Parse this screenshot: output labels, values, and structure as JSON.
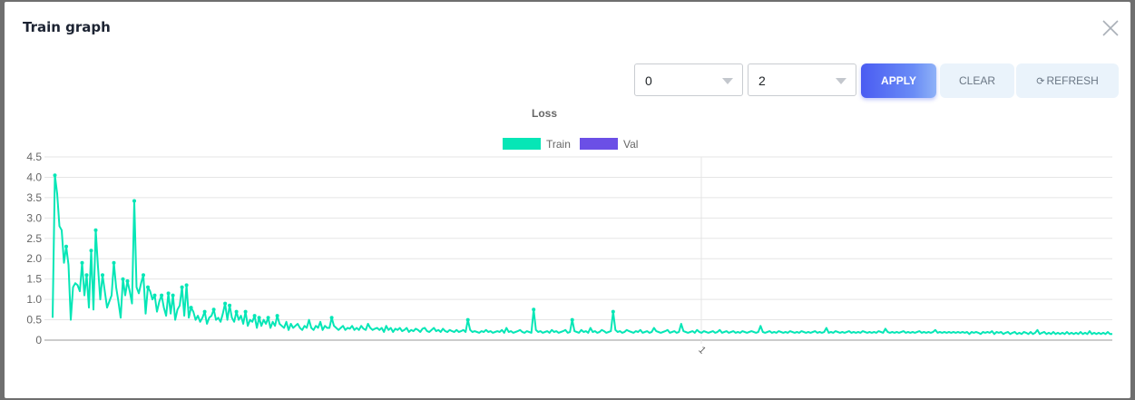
{
  "modal": {
    "title": "Train graph"
  },
  "filters": {
    "from_value": "0",
    "to_value": "2"
  },
  "buttons": {
    "apply": "APPLY",
    "clear": "CLEAR",
    "refresh": "REFRESH"
  },
  "colors": {
    "train": "#06e6b6",
    "val": "#6b4fe6",
    "grid": "#e5e5e5",
    "apply_gradient_start": "#4a5cf2"
  },
  "icons": {
    "close": "close-icon",
    "caret": "chevron-down-icon",
    "refresh": "refresh-icon"
  },
  "chart_data": {
    "type": "line",
    "title": "Loss",
    "xlabel": "",
    "ylabel": "",
    "ylim": [
      0,
      4.5
    ],
    "yticks": [
      "0",
      "0.5",
      "1.0",
      "1.5",
      "2.0",
      "2.5",
      "3.0",
      "3.5",
      "4.0",
      "4.5"
    ],
    "xticks": [
      "1"
    ],
    "grid": true,
    "legend": "top-center",
    "series": [
      {
        "name": "Train",
        "color": "#06e6b6",
        "values": [
          0.55,
          4.05,
          3.6,
          2.8,
          2.7,
          1.9,
          2.3,
          1.85,
          0.5,
          1.3,
          1.4,
          1.35,
          1.2,
          1.9,
          1.1,
          1.6,
          0.8,
          2.2,
          0.75,
          2.7,
          1.8,
          1.0,
          1.6,
          1.2,
          0.8,
          0.95,
          1.1,
          1.9,
          1.3,
          0.95,
          0.55,
          1.5,
          1.1,
          1.45,
          1.2,
          0.9,
          3.42,
          1.3,
          1.15,
          1.4,
          1.6,
          0.65,
          1.3,
          1.2,
          1.0,
          1.1,
          0.7,
          0.95,
          1.1,
          0.8,
          0.6,
          1.15,
          0.65,
          1.1,
          0.5,
          0.75,
          0.85,
          1.3,
          0.6,
          1.35,
          0.55,
          0.8,
          0.7,
          0.5,
          0.6,
          0.45,
          0.55,
          0.7,
          0.4,
          0.55,
          0.6,
          0.75,
          0.5,
          0.55,
          0.45,
          0.65,
          0.9,
          0.5,
          0.85,
          0.55,
          0.45,
          0.7,
          0.5,
          0.6,
          0.4,
          0.7,
          0.35,
          0.5,
          0.45,
          0.6,
          0.3,
          0.55,
          0.35,
          0.5,
          0.4,
          0.55,
          0.3,
          0.45,
          0.35,
          0.6,
          0.4,
          0.35,
          0.3,
          0.45,
          0.25,
          0.4,
          0.3,
          0.35,
          0.4,
          0.3,
          0.25,
          0.35,
          0.3,
          0.5,
          0.3,
          0.25,
          0.35,
          0.3,
          0.45,
          0.25,
          0.35,
          0.3,
          0.3,
          0.55,
          0.35,
          0.3,
          0.25,
          0.3,
          0.35,
          0.25,
          0.3,
          0.28,
          0.35,
          0.25,
          0.3,
          0.25,
          0.35,
          0.28,
          0.25,
          0.4,
          0.3,
          0.25,
          0.28,
          0.3,
          0.25,
          0.3,
          0.2,
          0.35,
          0.25,
          0.3,
          0.2,
          0.28,
          0.25,
          0.3,
          0.22,
          0.25,
          0.3,
          0.2,
          0.25,
          0.22,
          0.28,
          0.25,
          0.2,
          0.28,
          0.3,
          0.22,
          0.2,
          0.25,
          0.3,
          0.22,
          0.25,
          0.2,
          0.28,
          0.22,
          0.2,
          0.25,
          0.22,
          0.2,
          0.25,
          0.2,
          0.22,
          0.25,
          0.2,
          0.5,
          0.25,
          0.2,
          0.22,
          0.2,
          0.18,
          0.22,
          0.2,
          0.25,
          0.2,
          0.22,
          0.18,
          0.2,
          0.22,
          0.2,
          0.25,
          0.18,
          0.3,
          0.2,
          0.22,
          0.18,
          0.2,
          0.22,
          0.25,
          0.2,
          0.18,
          0.22,
          0.2,
          0.18,
          0.75,
          0.25,
          0.2,
          0.22,
          0.18,
          0.2,
          0.22,
          0.18,
          0.25,
          0.2,
          0.22,
          0.18,
          0.2,
          0.22,
          0.25,
          0.18,
          0.2,
          0.5,
          0.22,
          0.2,
          0.18,
          0.25,
          0.2,
          0.22,
          0.18,
          0.3,
          0.2,
          0.22,
          0.18,
          0.2,
          0.25,
          0.22,
          0.18,
          0.2,
          0.22,
          0.7,
          0.25,
          0.2,
          0.22,
          0.18,
          0.2,
          0.25,
          0.22,
          0.2,
          0.18,
          0.22,
          0.2,
          0.25,
          0.18,
          0.2,
          0.22,
          0.18,
          0.2,
          0.3,
          0.22,
          0.2,
          0.18,
          0.2,
          0.22,
          0.25,
          0.18,
          0.2,
          0.22,
          0.18,
          0.2,
          0.4,
          0.22,
          0.2,
          0.18,
          0.2,
          0.22,
          0.18,
          0.25,
          0.2,
          0.18,
          0.22,
          0.2,
          0.18,
          0.2,
          0.22,
          0.18,
          0.2,
          0.25,
          0.18,
          0.2,
          0.22,
          0.18,
          0.2,
          0.22,
          0.18,
          0.2,
          0.18,
          0.22,
          0.2,
          0.18,
          0.2,
          0.22,
          0.2,
          0.18,
          0.2,
          0.35,
          0.2,
          0.18,
          0.2,
          0.22,
          0.18,
          0.2,
          0.18,
          0.22,
          0.2,
          0.18,
          0.2,
          0.18,
          0.22,
          0.2,
          0.18,
          0.2,
          0.18,
          0.22,
          0.2,
          0.18,
          0.2,
          0.18,
          0.2,
          0.22,
          0.18,
          0.2,
          0.18,
          0.2,
          0.3,
          0.18,
          0.2,
          0.18,
          0.22,
          0.2,
          0.18,
          0.2,
          0.18,
          0.2,
          0.22,
          0.18,
          0.2,
          0.18,
          0.2,
          0.18,
          0.22,
          0.2,
          0.18,
          0.2,
          0.18,
          0.2,
          0.18,
          0.22,
          0.2,
          0.18,
          0.28,
          0.2,
          0.18,
          0.2,
          0.18,
          0.2,
          0.18,
          0.2,
          0.22,
          0.18,
          0.2,
          0.18,
          0.2,
          0.18,
          0.2,
          0.22,
          0.18,
          0.2,
          0.18,
          0.2,
          0.18,
          0.2,
          0.25,
          0.18,
          0.2,
          0.18,
          0.2,
          0.18,
          0.2,
          0.18,
          0.2,
          0.18,
          0.2,
          0.18,
          0.2,
          0.18,
          0.2,
          0.15,
          0.2,
          0.18,
          0.2,
          0.18,
          0.15,
          0.2,
          0.18,
          0.2,
          0.18,
          0.22,
          0.15,
          0.2,
          0.18,
          0.2,
          0.15,
          0.18,
          0.2,
          0.15,
          0.18,
          0.2,
          0.15,
          0.18,
          0.15,
          0.2,
          0.18,
          0.15,
          0.2,
          0.15,
          0.18,
          0.25,
          0.15,
          0.18,
          0.2,
          0.15,
          0.18,
          0.15,
          0.2,
          0.15,
          0.18,
          0.15,
          0.18,
          0.15,
          0.2,
          0.15,
          0.18,
          0.15,
          0.18,
          0.15,
          0.2,
          0.15,
          0.18,
          0.15,
          0.22,
          0.15,
          0.18,
          0.15,
          0.18,
          0.15,
          0.18,
          0.15,
          0.2,
          0.15,
          0.15
        ]
      },
      {
        "name": "Val",
        "color": "#6b4fe6",
        "values": []
      }
    ]
  }
}
